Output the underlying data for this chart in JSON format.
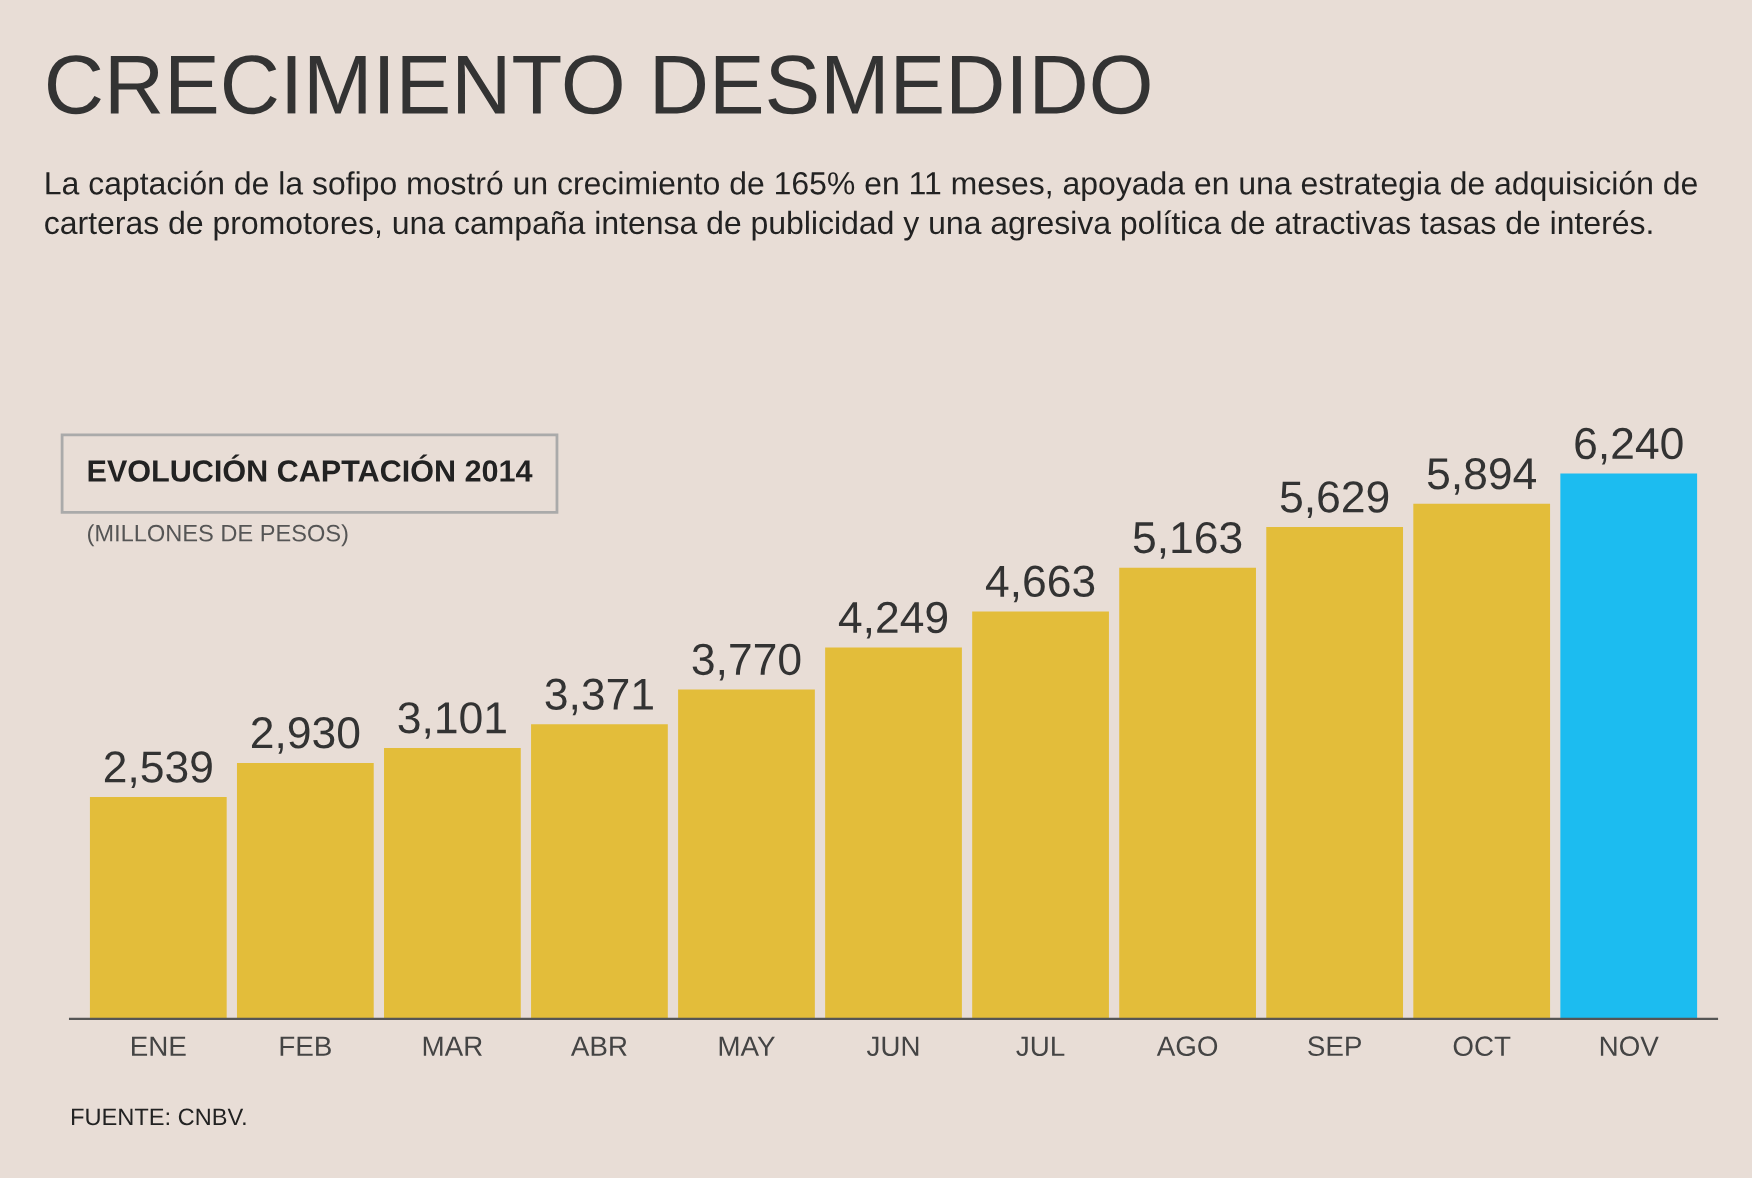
{
  "chart_data": {
    "type": "bar",
    "title": "CRECIMIENTO DESMEDIDO",
    "subtitle": "La captación de la sofipo mostró un crecimiento de 165% en 11 meses, apoyada en una estrategia de adquisición de carteras de promotores, una campaña intensa de publicidad y una agresiva política de atractivas tasas de interés.",
    "annotations": [
      "EVOLUCIÓN CAPTACIÓN 2014",
      "(MILLONES DE PESOS)",
      "FUENTE: CNBV."
    ],
    "categories": [
      "ENE",
      "FEB",
      "MAR",
      "ABR",
      "MAY",
      "JUN",
      "JUL",
      "AGO",
      "SEP",
      "OCT",
      "NOV"
    ],
    "values": [
      2539,
      2930,
      3101,
      3371,
      3770,
      4249,
      4663,
      5163,
      5629,
      5894,
      6240
    ],
    "value_labels": [
      "2,539",
      "2,930",
      "3,101",
      "3,371",
      "3,770",
      "4,249",
      "4,663",
      "5,163",
      "5,629",
      "5,894",
      "6,240"
    ],
    "colors": [
      "#e3bd3a",
      "#e3bd3a",
      "#e3bd3a",
      "#e3bd3a",
      "#e3bd3a",
      "#e3bd3a",
      "#e3bd3a",
      "#e3bd3a",
      "#e3bd3a",
      "#e3bd3a",
      "#1cbcf0"
    ]
  }
}
